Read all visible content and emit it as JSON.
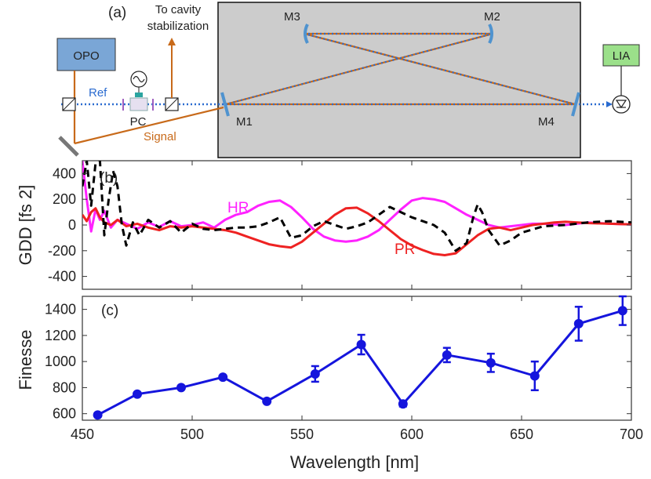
{
  "panel_a": {
    "label": "(a)",
    "opo_label": "OPO",
    "lia_label": "LIA",
    "pc_label": "PC",
    "ref_label": "Ref",
    "signal_label": "Signal",
    "stabilization_line1": "To cavity",
    "stabilization_line2": "stabilization",
    "mirrors": [
      "M1",
      "M2",
      "M3",
      "M4"
    ],
    "colors": {
      "box_fill": "#cccccc",
      "opo_fill": "#7aa6d6",
      "lia_fill": "#9be08a",
      "beam_orange": "#c86a1a",
      "beam_blue": "#2a6bd0",
      "mirror_blue": "#4f93cf",
      "signal_text": "#c86a1a",
      "ref_text": "#2a6bd0"
    }
  },
  "chart_data": [
    {
      "type": "line",
      "panel_label": "(b)",
      "ylabel": "GDD [fs 2]",
      "xlim": [
        450,
        700
      ],
      "ylim": [
        -500,
        500
      ],
      "yticks": [
        -400,
        -200,
        0,
        200,
        400
      ],
      "series": [
        {
          "name": "HR",
          "color": "#ff22ff",
          "dashed": false,
          "x": [
            450,
            452,
            454,
            456,
            458,
            460,
            463,
            466,
            470,
            475,
            480,
            485,
            490,
            495,
            500,
            505,
            510,
            515,
            520,
            525,
            530,
            535,
            540,
            545,
            550,
            555,
            560,
            565,
            570,
            575,
            580,
            585,
            590,
            595,
            600,
            605,
            610,
            615,
            620,
            625,
            630,
            635,
            640,
            645,
            650,
            655,
            660,
            665,
            670,
            680,
            690,
            700
          ],
          "y": [
            500,
            200,
            -50,
            120,
            40,
            110,
            -20,
            40,
            10,
            -30,
            20,
            -15,
            30,
            -10,
            0,
            20,
            -20,
            40,
            80,
            100,
            150,
            180,
            190,
            140,
            60,
            -30,
            -90,
            -120,
            -130,
            -120,
            -90,
            -40,
            40,
            120,
            190,
            210,
            200,
            180,
            130,
            80,
            40,
            0,
            -20,
            -10,
            0,
            10,
            10,
            5,
            0,
            20,
            10,
            5
          ]
        },
        {
          "name": "PR",
          "color": "#ee2222",
          "dashed": false,
          "x": [
            450,
            452,
            454,
            456,
            458,
            460,
            463,
            466,
            470,
            475,
            480,
            485,
            490,
            495,
            500,
            505,
            510,
            515,
            520,
            525,
            530,
            535,
            540,
            545,
            550,
            555,
            560,
            565,
            570,
            575,
            580,
            585,
            590,
            595,
            600,
            605,
            610,
            615,
            620,
            625,
            630,
            635,
            640,
            645,
            650,
            655,
            660,
            665,
            670,
            680,
            690,
            700
          ],
          "y": [
            80,
            30,
            100,
            130,
            60,
            20,
            0,
            40,
            -10,
            10,
            -20,
            -40,
            -10,
            -20,
            -10,
            -20,
            -30,
            -40,
            -60,
            -90,
            -120,
            -150,
            -165,
            -175,
            -130,
            -60,
            10,
            80,
            130,
            135,
            90,
            30,
            -40,
            -110,
            -160,
            -195,
            -225,
            -235,
            -220,
            -150,
            -80,
            -30,
            -20,
            -40,
            -20,
            0,
            10,
            20,
            25,
            15,
            10,
            5
          ]
        },
        {
          "name": "",
          "color": "#000000",
          "dashed": true,
          "x": [
            450,
            452,
            454,
            456,
            458,
            460,
            462,
            464,
            466,
            468,
            470,
            473,
            476,
            480,
            485,
            490,
            495,
            500,
            505,
            510,
            515,
            520,
            525,
            530,
            535,
            540,
            545,
            550,
            555,
            560,
            565,
            570,
            575,
            580,
            585,
            590,
            595,
            600,
            605,
            610,
            615,
            620,
            625,
            628,
            630,
            632,
            635,
            640,
            645,
            650,
            660,
            670,
            680,
            690,
            700
          ],
          "y": [
            300,
            500,
            150,
            480,
            500,
            -80,
            200,
            420,
            300,
            0,
            -160,
            20,
            -80,
            40,
            -20,
            30,
            -60,
            10,
            -30,
            -40,
            -30,
            -20,
            -20,
            -10,
            20,
            60,
            -100,
            -80,
            -10,
            30,
            0,
            -30,
            -10,
            20,
            80,
            140,
            100,
            60,
            30,
            0,
            -60,
            -200,
            -140,
            60,
            160,
            100,
            -40,
            -160,
            -120,
            -60,
            -10,
            0,
            20,
            30,
            20
          ]
        }
      ],
      "annotations": [
        "HR",
        "PR"
      ]
    },
    {
      "type": "line",
      "panel_label": "(c)",
      "ylabel": "Finesse",
      "xlabel": "Wavelength [nm]",
      "xlim": [
        450,
        700
      ],
      "ylim": [
        550,
        1500
      ],
      "yticks": [
        600,
        800,
        1000,
        1200,
        1400
      ],
      "xticks": [
        450,
        500,
        550,
        600,
        650,
        700
      ],
      "series": [
        {
          "name": "Finesse",
          "color": "#1515dd",
          "x": [
            457,
            475,
            495,
            514,
            534,
            556,
            577,
            596,
            616,
            636,
            656,
            676,
            696
          ],
          "y": [
            590,
            750,
            800,
            880,
            695,
            905,
            1130,
            675,
            1050,
            990,
            890,
            1290,
            1390
          ],
          "err": [
            0,
            0,
            0,
            0,
            0,
            60,
            75,
            20,
            55,
            70,
            110,
            130,
            110
          ]
        }
      ]
    }
  ]
}
